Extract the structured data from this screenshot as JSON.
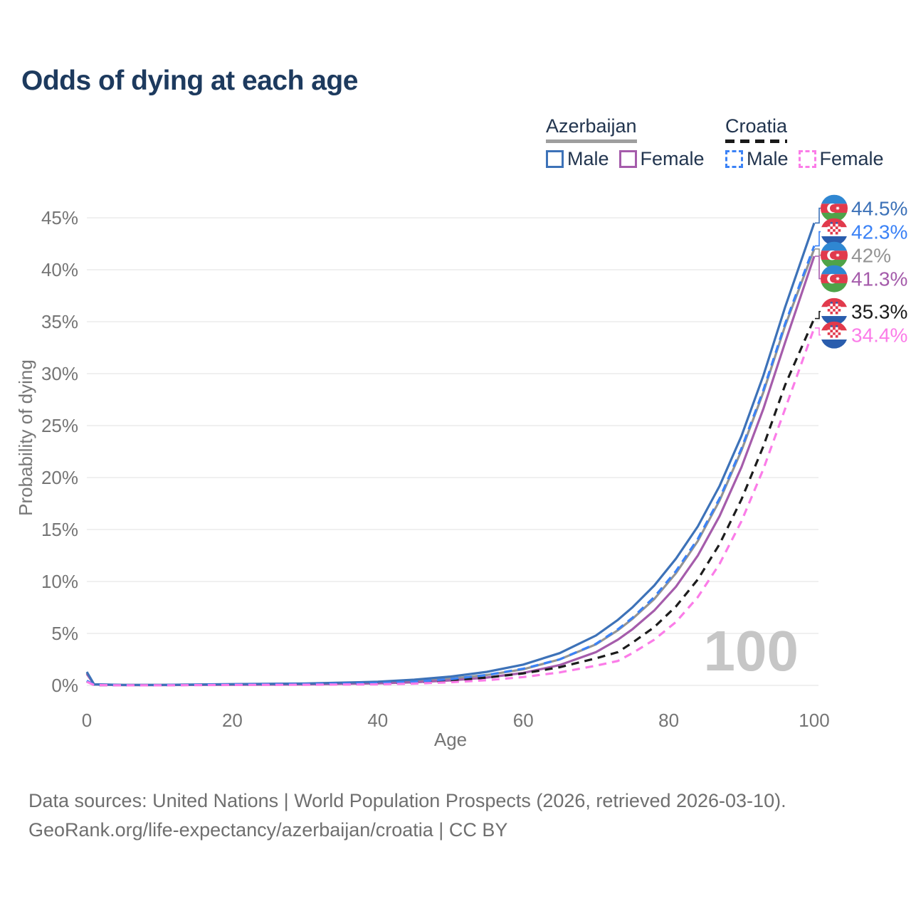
{
  "title": "Odds of dying at each age",
  "legend": {
    "azerbaijan": {
      "label": "Azerbaijan",
      "male": "Male",
      "female": "Female"
    },
    "croatia": {
      "label": "Croatia",
      "male": "Male",
      "female": "Female"
    }
  },
  "footer": {
    "line1": "Data sources: United Nations | World Population Prospects (2026, retrieved 2026-03-10).",
    "line2": "GeoRank.org/life-expectancy/azerbaijan/croatia | CC BY"
  },
  "colors": {
    "title": "#1d3a5e",
    "axis_text": "#757575",
    "gridline": "#ececec",
    "watermark": "#c6c6c6",
    "legend_text": "#22354f",
    "azerbaijan_underline": "#9e9e9e",
    "croatia_underline": "#1a1a1a"
  },
  "chart_data": {
    "type": "line",
    "title": "Odds of dying at each age",
    "xlabel": "Age",
    "ylabel": "Probability of dying",
    "xlim": [
      0,
      100
    ],
    "ylim": [
      0,
      45
    ],
    "x_ticks": [
      0,
      20,
      40,
      60,
      80,
      100
    ],
    "y_ticks": [
      0,
      5,
      10,
      15,
      20,
      25,
      30,
      35,
      40,
      45
    ],
    "y_tick_suffix": "%",
    "grid": "horizontal",
    "legend_position": "top-right",
    "hover_age_label": "100",
    "ages": [
      0,
      1,
      5,
      10,
      20,
      30,
      40,
      45,
      50,
      55,
      60,
      65,
      70,
      73,
      75,
      78,
      81,
      84,
      87,
      90,
      93,
      96,
      100
    ],
    "series": [
      {
        "name": "Azerbaijan Male",
        "country": "Azerbaijan",
        "sex": "Male",
        "flag": "az",
        "style": "solid",
        "color": "#3d72b8",
        "end_value": 44.5,
        "end_label": "44.5%",
        "values": [
          1.3,
          0.1,
          0.05,
          0.05,
          0.12,
          0.18,
          0.35,
          0.55,
          0.85,
          1.3,
          2.0,
          3.1,
          4.8,
          6.3,
          7.5,
          9.6,
          12.2,
          15.3,
          19.2,
          24.0,
          29.8,
          36.4,
          44.5
        ]
      },
      {
        "name": "Croatia Male",
        "country": "Croatia",
        "sex": "Male",
        "flag": "hr",
        "style": "dashed",
        "color": "#3b82f6",
        "end_value": 42.3,
        "end_label": "42.3%",
        "values": [
          0.45,
          0.04,
          0.02,
          0.02,
          0.08,
          0.12,
          0.22,
          0.35,
          0.6,
          1.0,
          1.6,
          2.5,
          4.0,
          5.4,
          6.5,
          8.5,
          11.0,
          14.1,
          18.0,
          22.8,
          28.4,
          34.8,
          42.3
        ]
      },
      {
        "name": "Azerbaijan Both sexes",
        "country": "Azerbaijan",
        "sex": "Both",
        "flag": "az",
        "style": "solid",
        "color": "#949494",
        "end_value": 42.0,
        "end_label": "42%",
        "values": [
          1.2,
          0.09,
          0.04,
          0.04,
          0.09,
          0.14,
          0.27,
          0.42,
          0.65,
          1.0,
          1.55,
          2.5,
          3.95,
          5.3,
          6.4,
          8.3,
          10.8,
          13.9,
          17.8,
          22.6,
          28.2,
          34.6,
          42.0
        ]
      },
      {
        "name": "Azerbaijan Female",
        "country": "Azerbaijan",
        "sex": "Female",
        "flag": "az",
        "style": "solid",
        "color": "#a55cab",
        "end_value": 41.3,
        "end_label": "41.3%",
        "values": [
          1.1,
          0.08,
          0.03,
          0.03,
          0.06,
          0.09,
          0.2,
          0.3,
          0.48,
          0.75,
          1.2,
          1.95,
          3.2,
          4.4,
          5.4,
          7.2,
          9.5,
          12.5,
          16.3,
          21.0,
          26.6,
          33.0,
          41.3
        ]
      },
      {
        "name": "Croatia Both sexes",
        "country": "Croatia",
        "sex": "Both",
        "flag": "hr",
        "style": "dashed",
        "color": "#1c1c1c",
        "end_value": 35.3,
        "end_label": "35.3%",
        "values": [
          0.4,
          0.03,
          0.02,
          0.02,
          0.06,
          0.09,
          0.16,
          0.26,
          0.45,
          0.75,
          1.15,
          1.75,
          2.6,
          3.2,
          4.1,
          5.6,
          7.6,
          10.2,
          13.6,
          17.9,
          23.0,
          28.9,
          35.3
        ]
      },
      {
        "name": "Croatia Female",
        "country": "Croatia",
        "sex": "Female",
        "flag": "hr",
        "style": "dashed",
        "color": "#fb7ce8",
        "end_value": 34.4,
        "end_label": "34.4%",
        "values": [
          0.35,
          0.03,
          0.01,
          0.01,
          0.04,
          0.06,
          0.1,
          0.17,
          0.3,
          0.5,
          0.8,
          1.25,
          1.9,
          2.35,
          3.1,
          4.4,
          6.1,
          8.5,
          11.7,
          15.8,
          20.8,
          26.6,
          34.4
        ]
      }
    ]
  }
}
